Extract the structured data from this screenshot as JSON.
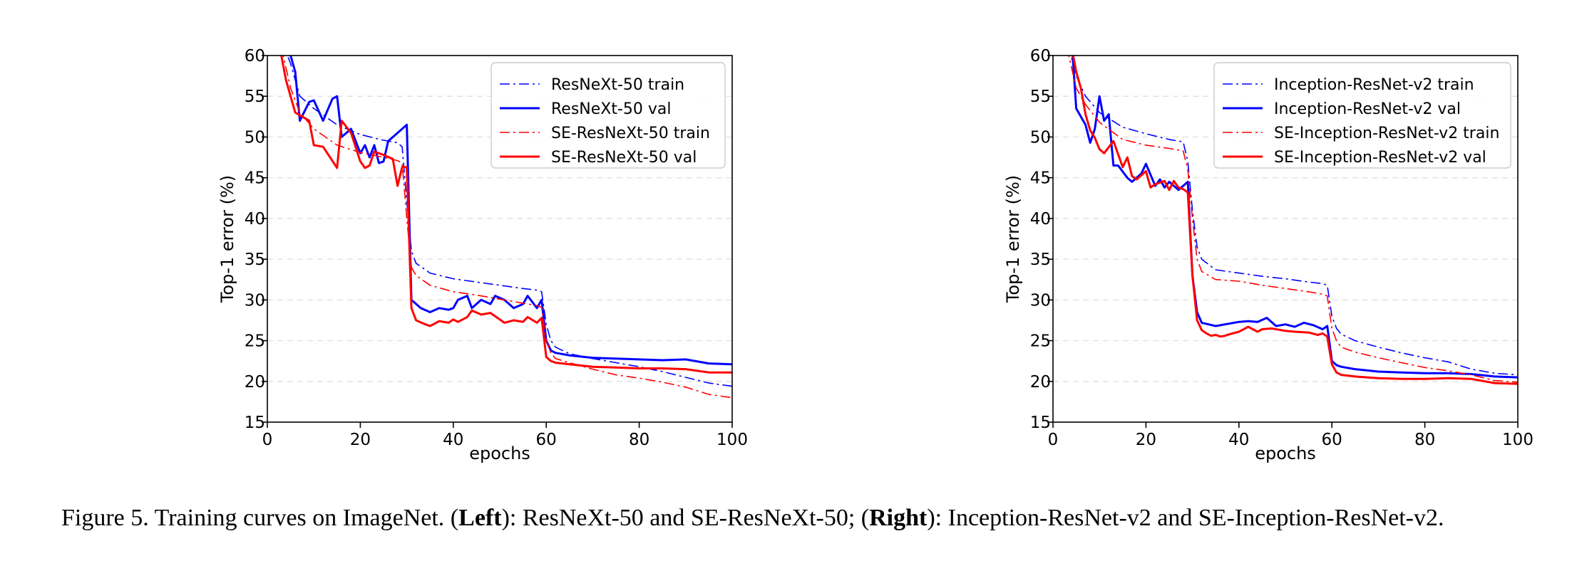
{
  "chart_data": [
    {
      "type": "line",
      "panel": "Left",
      "xlabel": "epochs",
      "ylabel": "Top-1 error (%)",
      "xlim": [
        0,
        100
      ],
      "ylim": [
        15,
        60
      ],
      "xticks": [
        0,
        20,
        40,
        60,
        80,
        100
      ],
      "yticks": [
        15,
        20,
        25,
        30,
        35,
        40,
        45,
        50,
        55,
        60
      ],
      "grid": "horizontal dashed",
      "legend_position": "top-right",
      "series": [
        {
          "name": "ResNeXt-50 train",
          "color": "#0000ff",
          "style": "dashdot",
          "x": [
            3,
            5,
            7,
            10,
            15,
            20,
            25,
            28,
            29,
            30,
            31,
            32,
            35,
            40,
            45,
            50,
            55,
            58,
            59,
            60,
            61,
            62,
            65,
            70,
            75,
            80,
            85,
            90,
            95,
            100
          ],
          "y": [
            62,
            59,
            55,
            53.5,
            51.5,
            50.3,
            49.6,
            49.3,
            48.8,
            42,
            36,
            34.5,
            33.3,
            32.6,
            32.2,
            31.8,
            31.4,
            31.2,
            31.0,
            27,
            25,
            24.2,
            23.4,
            22.8,
            22.3,
            21.8,
            21.2,
            20.5,
            19.8,
            19.4
          ]
        },
        {
          "name": "ResNeXt-50 val",
          "color": "#0000ff",
          "style": "solid",
          "x": [
            4,
            6,
            7,
            9,
            10,
            12,
            14,
            15,
            16,
            18,
            20,
            21,
            22,
            23,
            24,
            25,
            26,
            28,
            30,
            31,
            33,
            35,
            37,
            39,
            40,
            41,
            43,
            44,
            46,
            48,
            49,
            51,
            53,
            55,
            56,
            58,
            59,
            60,
            61,
            62,
            65,
            70,
            75,
            80,
            85,
            90,
            95,
            100
          ],
          "y": [
            62,
            58,
            52,
            54.3,
            54.5,
            52,
            54.7,
            55,
            50,
            51,
            48,
            49,
            47.5,
            49,
            46.8,
            47,
            49.5,
            50.5,
            51.5,
            30,
            29,
            28.5,
            29,
            28.8,
            29,
            30,
            30.5,
            29,
            30,
            29.5,
            30.5,
            30,
            29,
            29.5,
            30.5,
            29,
            30,
            25,
            23.8,
            23.5,
            23.2,
            22.9,
            22.8,
            22.7,
            22.6,
            22.7,
            22.2,
            22.1
          ]
        },
        {
          "name": "SE-ResNeXt-50 train",
          "color": "#ff0000",
          "style": "dashdot",
          "x": [
            3,
            5,
            7,
            10,
            15,
            20,
            25,
            28,
            29,
            30,
            31,
            32,
            35,
            40,
            45,
            50,
            55,
            58,
            59,
            60,
            61,
            62,
            65,
            70,
            75,
            80,
            85,
            90,
            95,
            100
          ],
          "y": [
            61,
            56,
            53,
            51,
            49,
            48.1,
            47.5,
            47.1,
            46.8,
            40,
            34,
            33,
            31.8,
            31,
            30.6,
            30.1,
            29.6,
            29.3,
            29.1,
            25,
            23.5,
            22.8,
            22.3,
            21.5,
            20.8,
            20.4,
            19.9,
            19.3,
            18.4,
            18
          ]
        },
        {
          "name": "SE-ResNeXt-50 val",
          "color": "#ff0000",
          "style": "solid",
          "x": [
            3,
            4,
            6,
            9,
            10,
            12,
            15,
            16,
            18,
            20,
            21,
            22,
            23,
            24,
            25,
            27,
            28,
            29,
            30,
            31,
            32,
            34,
            35,
            37,
            39,
            40,
            41,
            43,
            44,
            46,
            48,
            49,
            51,
            53,
            55,
            56,
            58,
            59,
            60,
            61,
            62,
            65,
            70,
            75,
            80,
            85,
            90,
            95,
            100
          ],
          "y": [
            60,
            57,
            53,
            52,
            49,
            48.8,
            46.2,
            52,
            50.5,
            47,
            46.2,
            46.5,
            48.2,
            48,
            47.8,
            47.3,
            44,
            46.3,
            46.3,
            29,
            27.5,
            27,
            26.8,
            27.4,
            27.2,
            27.6,
            27.3,
            27.9,
            28.7,
            28.2,
            28.4,
            28,
            27.2,
            27.5,
            27.3,
            27.9,
            27.2,
            27.8,
            23,
            22.5,
            22.3,
            22.1,
            21.8,
            21.7,
            21.6,
            21.6,
            21.5,
            21.1,
            21.1
          ]
        }
      ]
    },
    {
      "type": "line",
      "panel": "Right",
      "xlabel": "epochs",
      "ylabel": "Top-1 error (%)",
      "xlim": [
        0,
        100
      ],
      "ylim": [
        15,
        60
      ],
      "xticks": [
        0,
        20,
        40,
        60,
        80,
        100
      ],
      "yticks": [
        15,
        20,
        25,
        30,
        35,
        40,
        45,
        50,
        55,
        60
      ],
      "grid": "horizontal dashed",
      "legend_position": "top-right",
      "series": [
        {
          "name": "Inception-ResNet-v2 train",
          "color": "#0000ff",
          "style": "dashdot",
          "x": [
            3,
            5,
            7,
            10,
            15,
            20,
            25,
            28,
            29,
            30,
            31,
            32,
            35,
            40,
            45,
            50,
            55,
            58,
            59,
            60,
            61,
            62,
            65,
            70,
            75,
            80,
            85,
            90,
            95,
            100
          ],
          "y": [
            62,
            57.5,
            55,
            53,
            51.2,
            50.4,
            49.7,
            49.4,
            47,
            41,
            36.5,
            35,
            33.7,
            33.3,
            32.9,
            32.6,
            32.2,
            32.0,
            31.8,
            28,
            26.5,
            25.8,
            25,
            24.2,
            23.5,
            22.9,
            22.4,
            21.5,
            21,
            20.8
          ]
        },
        {
          "name": "Inception-ResNet-v2 val",
          "color": "#0000ff",
          "style": "solid",
          "x": [
            4,
            5,
            7,
            8,
            9,
            10,
            11,
            12,
            13,
            14,
            16,
            17,
            19,
            20,
            22,
            23,
            24,
            25,
            27,
            28,
            29,
            30,
            31,
            32,
            35,
            40,
            42,
            44,
            46,
            48,
            50,
            52,
            54,
            56,
            58,
            59,
            60,
            61,
            62,
            65,
            70,
            75,
            80,
            85,
            90,
            95,
            100
          ],
          "y": [
            62,
            53.5,
            51.5,
            49.3,
            51,
            55,
            52,
            52.8,
            46.5,
            46.5,
            45,
            44.5,
            45.5,
            46.7,
            44,
            44.8,
            43.8,
            44.5,
            43.5,
            44,
            44.5,
            33,
            28.5,
            27.2,
            26.8,
            27.3,
            27.4,
            27.3,
            27.8,
            26.8,
            27,
            26.7,
            27.2,
            26.9,
            26.4,
            26.8,
            22.5,
            22,
            21.8,
            21.5,
            21.2,
            21.1,
            21.0,
            21.0,
            20.9,
            20.6,
            20.5
          ]
        },
        {
          "name": "SE-Inception-ResNet-v2 train",
          "color": "#ff0000",
          "style": "dashdot",
          "x": [
            3,
            5,
            7,
            10,
            15,
            20,
            25,
            28,
            29,
            30,
            31,
            32,
            35,
            40,
            45,
            50,
            55,
            58,
            59,
            60,
            61,
            62,
            65,
            70,
            75,
            80,
            85,
            90,
            95,
            100
          ],
          "y": [
            61,
            56,
            54,
            51.8,
            49.7,
            49,
            48.6,
            48.3,
            46,
            40,
            35,
            33.5,
            32.5,
            32.3,
            31.8,
            31.4,
            31,
            30.7,
            30.5,
            26.5,
            25,
            24.2,
            23.6,
            22.9,
            22.3,
            21.7,
            21.3,
            20.8,
            20.1,
            19.9
          ]
        },
        {
          "name": "SE-Inception-ResNet-v2 val",
          "color": "#ff0000",
          "style": "solid",
          "x": [
            4,
            5,
            6,
            7,
            8,
            9,
            10,
            11,
            13,
            15,
            16,
            17,
            18,
            20,
            21,
            22,
            24,
            25,
            26,
            27,
            28,
            29,
            30,
            31,
            32,
            33,
            34,
            35,
            36,
            37,
            38,
            40,
            42,
            44,
            45,
            47,
            50,
            52,
            55,
            57,
            58,
            59,
            60,
            61,
            62,
            65,
            70,
            75,
            80,
            85,
            90,
            95,
            100
          ],
          "y": [
            61,
            58,
            56,
            52.8,
            50.8,
            49.9,
            48.5,
            48,
            49.5,
            46.3,
            47.5,
            45.2,
            44.8,
            45.8,
            43.8,
            44.2,
            44.6,
            43.5,
            44.6,
            43.8,
            43.6,
            43.2,
            33,
            27.5,
            26.3,
            25.9,
            25.6,
            25.7,
            25.5,
            25.6,
            25.8,
            26.1,
            26.7,
            26.1,
            26.4,
            26.5,
            26.2,
            26.1,
            26.0,
            25.7,
            25.9,
            25.5,
            22.1,
            21.1,
            20.8,
            20.6,
            20.4,
            20.3,
            20.3,
            20.4,
            20.3,
            19.8,
            19.7
          ]
        }
      ]
    }
  ],
  "caption": {
    "prefix": "Figure 5. Training curves on ImageNet. (",
    "left_bold": "Left",
    "middle": "): ResNeXt-50 and SE-ResNeXt-50; (",
    "right_bold": "Right",
    "suffix": "): Inception-ResNet-v2 and SE-Inception-ResNet-v2."
  }
}
